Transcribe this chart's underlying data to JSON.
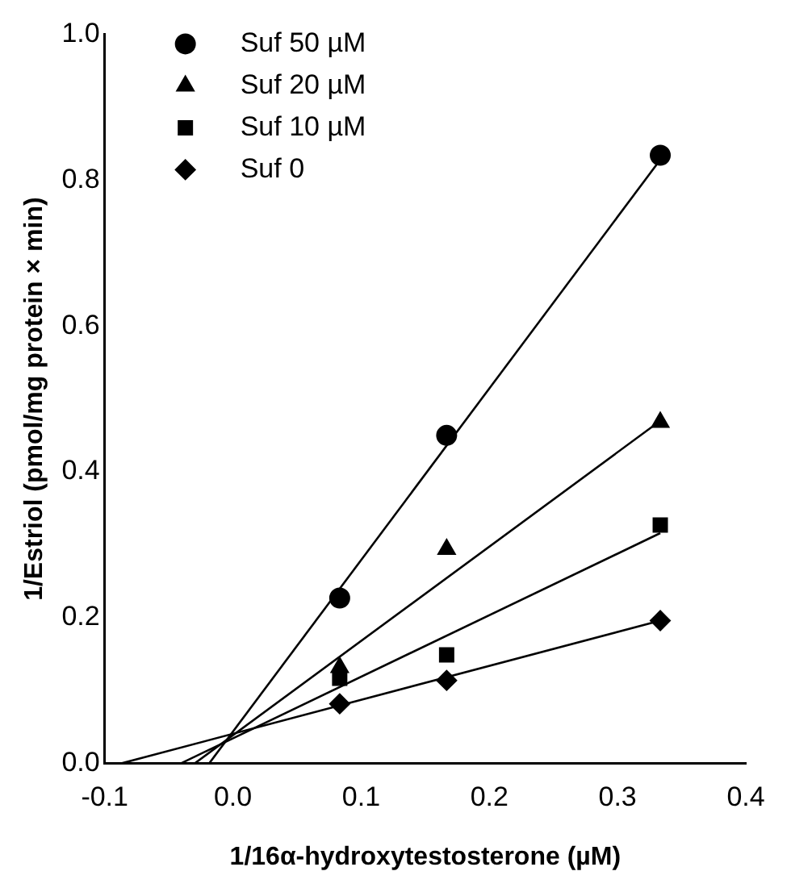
{
  "chart_data": {
    "type": "scatter",
    "xlabel": "1/16α-hydroxytestosterone (µM)",
    "ylabel": "1/Estriol (pmol/mg protein × min)",
    "xlim": [
      -0.1,
      0.4
    ],
    "xticks": [
      {
        "value": -0.1,
        "label": "-0.1"
      },
      {
        "value": 0,
        "label": "0.0"
      },
      0.1,
      0.2,
      0.3,
      0.4
    ],
    "ylim": [
      0,
      1
    ],
    "yticks": [
      {
        "value": 0,
        "label": "0.0"
      },
      0.2,
      0.4,
      0.6,
      0.8,
      {
        "value": 1,
        "label": "1.0"
      }
    ],
    "grid": false,
    "legend": "top left",
    "series": [
      {
        "name": "Suf 50 µM",
        "color": "#000000",
        "marker": "circle",
        "x": [
          0.0833,
          0.1667,
          0.3333
        ],
        "values": [
          0.227,
          0.45,
          0.834
        ]
      },
      {
        "name": "Suf 20 µM",
        "color": "#000000",
        "marker": "triangle",
        "x": [
          0.0833,
          0.1667,
          0.3333
        ],
        "values": [
          0.132,
          0.294,
          0.468
        ]
      },
      {
        "name": "Suf 10 µM",
        "color": "#000000",
        "marker": "square",
        "x": [
          0.0833,
          0.1667,
          0.3333
        ],
        "values": [
          0.117,
          0.149,
          0.327
        ]
      },
      {
        "name": "Suf 0",
        "color": "#000000",
        "marker": "diamond",
        "x": [
          0.0833,
          0.1667,
          0.3333
        ],
        "values": [
          0.082,
          0.114,
          0.196
        ]
      },
      {
        "type": "line",
        "color": "#000000",
        "marker": "none",
        "x": [
          -0.0186,
          0.3333
        ],
        "values": [
          0,
          0.828
        ]
      },
      {
        "type": "line",
        "color": "#000000",
        "marker": "none",
        "x": [
          -0.03,
          0.3333
        ],
        "values": [
          0,
          0.47
        ]
      },
      {
        "type": "line",
        "color": "#000000",
        "marker": "none",
        "x": [
          -0.041,
          0.3333
        ],
        "values": [
          0,
          0.316
        ]
      },
      {
        "type": "line",
        "color": "#000000",
        "marker": "none",
        "x": [
          -0.0877,
          0.3333
        ],
        "values": [
          0,
          0.196
        ]
      }
    ]
  }
}
